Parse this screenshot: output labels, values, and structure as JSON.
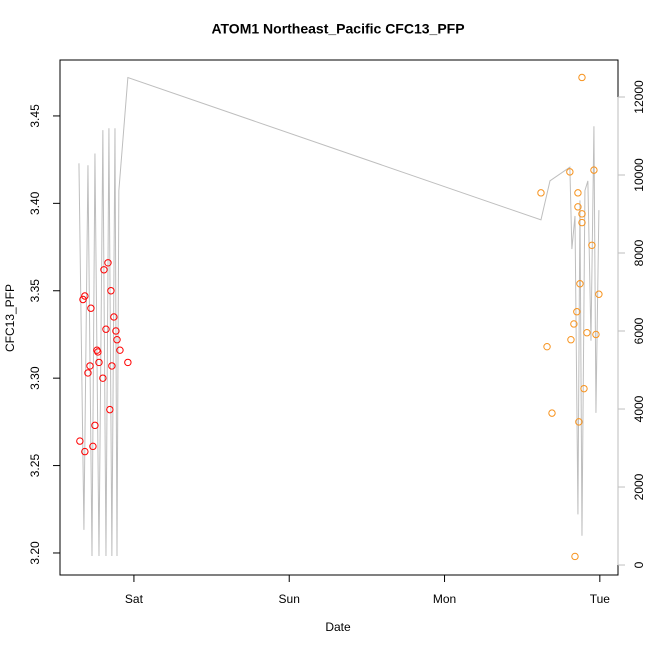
{
  "chart_data": {
    "type": "scatter",
    "title": "ATOM1 Northeast_Pacific CFC13_PFP",
    "x_label": "Date",
    "y_label": "CFC13_PFP",
    "xlim": [
      -0.476,
      3.117
    ],
    "xticks": [
      {
        "value": 0,
        "label": "Sat"
      },
      {
        "value": 1,
        "label": "Sun"
      },
      {
        "value": 2,
        "label": "Mon"
      },
      {
        "value": 3,
        "label": "Tue"
      }
    ],
    "ylim": [
      3.1874,
      3.482
    ],
    "yticks": [
      {
        "value": 3.2,
        "label": "3.20"
      },
      3.25,
      {
        "value": 3.3,
        "label": "3.30"
      },
      3.35,
      {
        "value": 3.4,
        "label": "3.40"
      },
      3.45
    ],
    "y2lim": [
      -256,
      12949
    ],
    "y2ticks": [
      0,
      2000,
      4000,
      6000,
      8000,
      10000,
      12000
    ],
    "y2_color": "#bebebe",
    "series": [
      {
        "type": "line",
        "axis": "y2",
        "color": "#bebebe",
        "x": [
          -0.354,
          -0.322,
          -0.296,
          -0.27,
          -0.251,
          -0.225,
          -0.2,
          -0.18,
          -0.161,
          -0.142,
          -0.122,
          -0.109,
          -0.097,
          -0.039,
          2.621,
          2.679,
          2.807,
          2.82,
          2.84,
          2.859,
          2.872,
          2.885,
          2.904,
          2.923,
          2.943,
          2.962,
          2.975,
          2.994
        ],
        "values": [
          10300,
          900,
          10250,
          230,
          10550,
          230,
          11150,
          230,
          11200,
          230,
          11200,
          230,
          9600,
          12500,
          8850,
          9850,
          10200,
          8100,
          8950,
          1300,
          9350,
          750,
          9600,
          9850,
          5750,
          11250,
          3900,
          9100
        ]
      },
      {
        "type": "scatter",
        "color": "#ff0000",
        "x": [
          -0.348,
          -0.316,
          -0.328,
          -0.316,
          -0.296,
          -0.283,
          -0.277,
          -0.264,
          -0.251,
          -0.238,
          -0.232,
          -0.225,
          -0.2,
          -0.193,
          -0.18,
          -0.167,
          -0.155,
          -0.148,
          -0.142,
          -0.129,
          -0.116,
          -0.109,
          -0.09,
          -0.039
        ],
        "values": [
          3.264,
          3.258,
          3.345,
          3.347,
          3.303,
          3.307,
          3.34,
          3.261,
          3.273,
          3.316,
          3.315,
          3.309,
          3.3,
          3.362,
          3.328,
          3.366,
          3.282,
          3.35,
          3.307,
          3.335,
          3.327,
          3.322,
          3.316,
          3.309
        ]
      },
      {
        "type": "scatter",
        "color": "#f7931e",
        "x": [
          2.621,
          2.66,
          2.692,
          2.807,
          2.814,
          2.833,
          2.84,
          2.852,
          2.859,
          2.859,
          2.865,
          2.872,
          2.885,
          2.885,
          2.885,
          2.898,
          2.917,
          2.949,
          2.962,
          2.975,
          2.994
        ],
        "values": [
          3.406,
          3.318,
          3.28,
          3.418,
          3.322,
          3.331,
          3.198,
          3.338,
          3.406,
          3.398,
          3.275,
          3.354,
          3.394,
          3.472,
          3.389,
          3.294,
          3.326,
          3.376,
          3.419,
          3.325,
          3.348
        ]
      }
    ]
  }
}
